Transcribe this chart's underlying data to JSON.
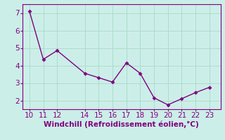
{
  "x": [
    10,
    11,
    12,
    14,
    15,
    16,
    17,
    18,
    19,
    20,
    21,
    22,
    23
  ],
  "y": [
    7.1,
    4.35,
    4.85,
    3.55,
    3.3,
    3.05,
    4.15,
    3.55,
    2.15,
    1.75,
    2.1,
    2.45,
    2.75
  ],
  "line_color": "#800080",
  "marker": "D",
  "marker_size": 2.5,
  "bg_color": "#cceee8",
  "grid_color": "#aaddcc",
  "xlabel": "Windchill (Refroidissement éolien,°C)",
  "xlabel_color": "#800080",
  "xlabel_fontsize": 7.5,
  "xticks": [
    10,
    11,
    12,
    14,
    15,
    16,
    17,
    18,
    19,
    20,
    21,
    22,
    23
  ],
  "yticks": [
    2,
    3,
    4,
    5,
    6,
    7
  ],
  "xlim": [
    9.5,
    23.8
  ],
  "ylim": [
    1.5,
    7.5
  ],
  "tick_fontsize": 7.5,
  "tick_color": "#800080",
  "spine_color": "#800080",
  "linewidth": 1.0
}
